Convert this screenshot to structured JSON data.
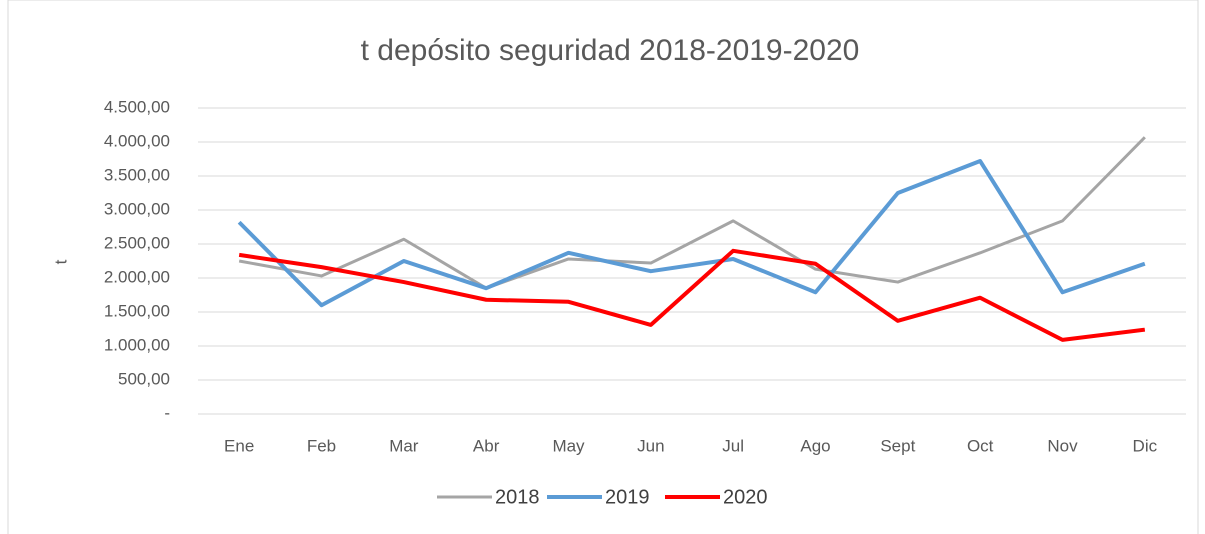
{
  "chart_data": {
    "type": "line",
    "title": "t depósito seguridad 2018-2019-2020",
    "y_label": "t",
    "categories": [
      "Ene",
      "Feb",
      "Mar",
      "Abr",
      "May",
      "Jun",
      "Jul",
      "Ago",
      "Sept",
      "Oct",
      "Nov",
      "Dic"
    ],
    "series": [
      {
        "name": "2018",
        "color": "#a5a5a5",
        "values": [
          2250,
          2030,
          2570,
          1850,
          2280,
          2220,
          2840,
          2130,
          1940,
          2370,
          2840,
          4070
        ]
      },
      {
        "name": "2019",
        "color": "#5b9bd5",
        "values": [
          2820,
          1600,
          2250,
          1850,
          2370,
          2100,
          2280,
          1790,
          3250,
          3720,
          1790,
          2210
        ]
      },
      {
        "name": "2020",
        "color": "#ff0000",
        "values": [
          2340,
          2160,
          1940,
          1680,
          1650,
          1310,
          2400,
          2210,
          1370,
          1710,
          1090,
          1240
        ]
      }
    ],
    "ylim": [
      0,
      4500
    ],
    "yticks": [
      {
        "value": 0,
        "label": "-"
      },
      {
        "value": 500,
        "label": "500,00"
      },
      {
        "value": 1000,
        "label": "1.000,00"
      },
      {
        "value": 1500,
        "label": "1.500,00"
      },
      {
        "value": 2000,
        "label": "2.000,00"
      },
      {
        "value": 2500,
        "label": "2.500,00"
      },
      {
        "value": 3000,
        "label": "3.000,00"
      },
      {
        "value": 3500,
        "label": "3.500,00"
      },
      {
        "value": 4000,
        "label": "4.000,00"
      },
      {
        "value": 4500,
        "label": "4.500,00"
      }
    ],
    "grid": true,
    "legend": "bottom"
  }
}
